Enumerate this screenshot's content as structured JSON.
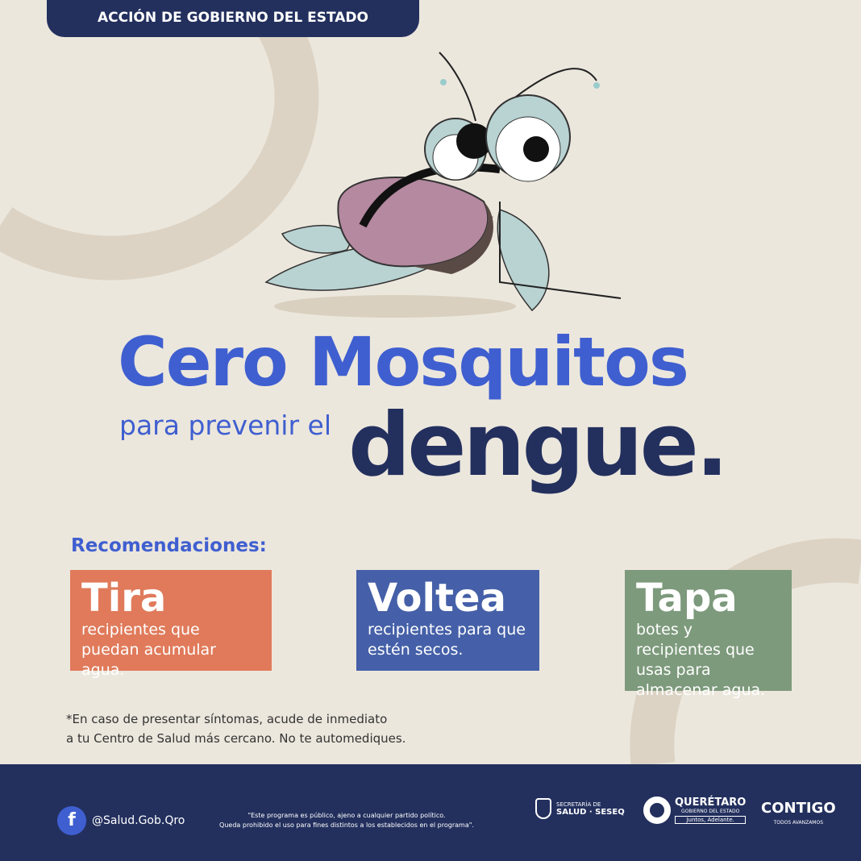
{
  "header": {
    "label": "ACCIÓN DE GOBIERNO DEL ESTADO"
  },
  "title": {
    "line1": "Cero Mosquitos",
    "subtitle": "para prevenir el",
    "line2": "dengue."
  },
  "recommendations": {
    "heading": "Recomendaciones:",
    "items": [
      {
        "title": "Tira",
        "text": "recipientes que puedan acumular agua.",
        "color": "#e07a5a"
      },
      {
        "title": "Voltea",
        "text": "recipientes para que estén secos.",
        "color": "#4560a8"
      },
      {
        "title": "Tapa",
        "text": "botes y recipientes que usas para almacenar agua.",
        "color": "#7d9a7c"
      }
    ]
  },
  "note": {
    "line1": "*En caso de presentar síntomas, acude de inmediato",
    "line2": "a tu Centro de Salud más cercano. No te automediques."
  },
  "footer": {
    "social_handle": "@Salud.Gob.Qro",
    "disclaimer1": "\"Este programa es público, ajeno a cualquier partido político.",
    "disclaimer2": "Queda prohibido el uso para fines distintos a los establecidos en el programa\".",
    "seseq_top": "SECRETARÍA DE",
    "seseq_main": "SALUD · SESEQ",
    "qro_main": "QUERÉTARO",
    "qro_sub": "GOBIERNO DEL ESTADO",
    "qro_tag": "Juntos, Adelante.",
    "contigo": "CONTIGO",
    "contigo_sub": "TODOS AVANZAMOS"
  },
  "colors": {
    "navy": "#23305e",
    "blue": "#3f5fd0",
    "background": "#ece7dd"
  }
}
